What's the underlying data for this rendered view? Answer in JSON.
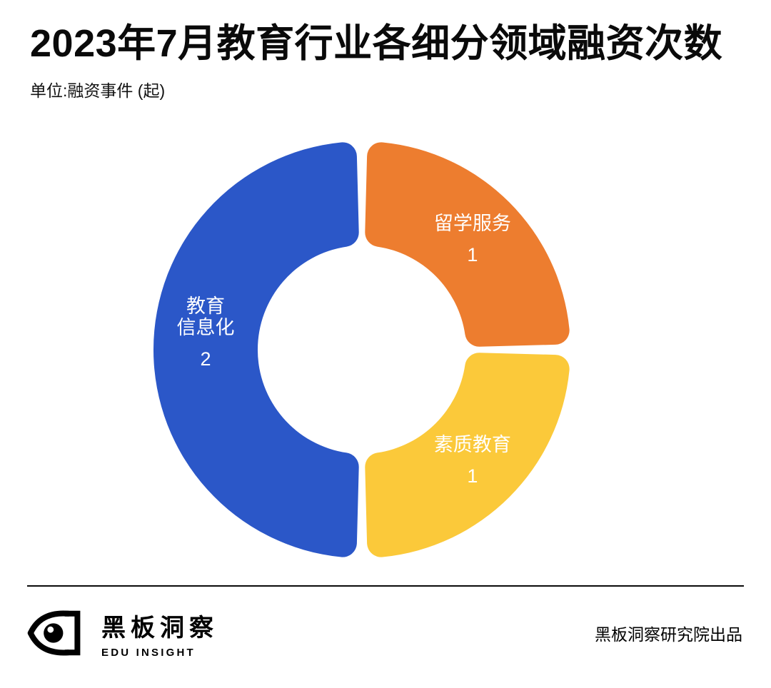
{
  "page": {
    "title": "2023年7月教育行业各细分领域融资次数",
    "unit_label": "单位:融资事件 (起)"
  },
  "chart_data": {
    "type": "pie",
    "variant": "donut",
    "title": "2023年7月教育行业各细分领域融资次数",
    "unit": "融资事件 (起)",
    "total": 4,
    "start_angle_deg": 0,
    "clockwise": true,
    "gap_deg": 3,
    "label_color": "#ffffff",
    "legend": "none",
    "segments": [
      {
        "label": "留学服务",
        "label_lines": [
          "留学服务"
        ],
        "value": 1,
        "color": "#ED7D2F",
        "label_dy": 0
      },
      {
        "label": "素质教育",
        "label_lines": [
          "素质教育"
        ],
        "value": 1,
        "color": "#FBC93A",
        "label_dy": 0
      },
      {
        "label": "教育信息化",
        "label_lines": [
          "教育",
          "信息化"
        ],
        "value": 2,
        "color": "#2B57C8",
        "label_dy": -24
      }
    ]
  },
  "footer": {
    "brand_cn": "黑板洞察",
    "brand_en": "EDU INSIGHT",
    "credit": "黑板洞察研究院出品"
  }
}
